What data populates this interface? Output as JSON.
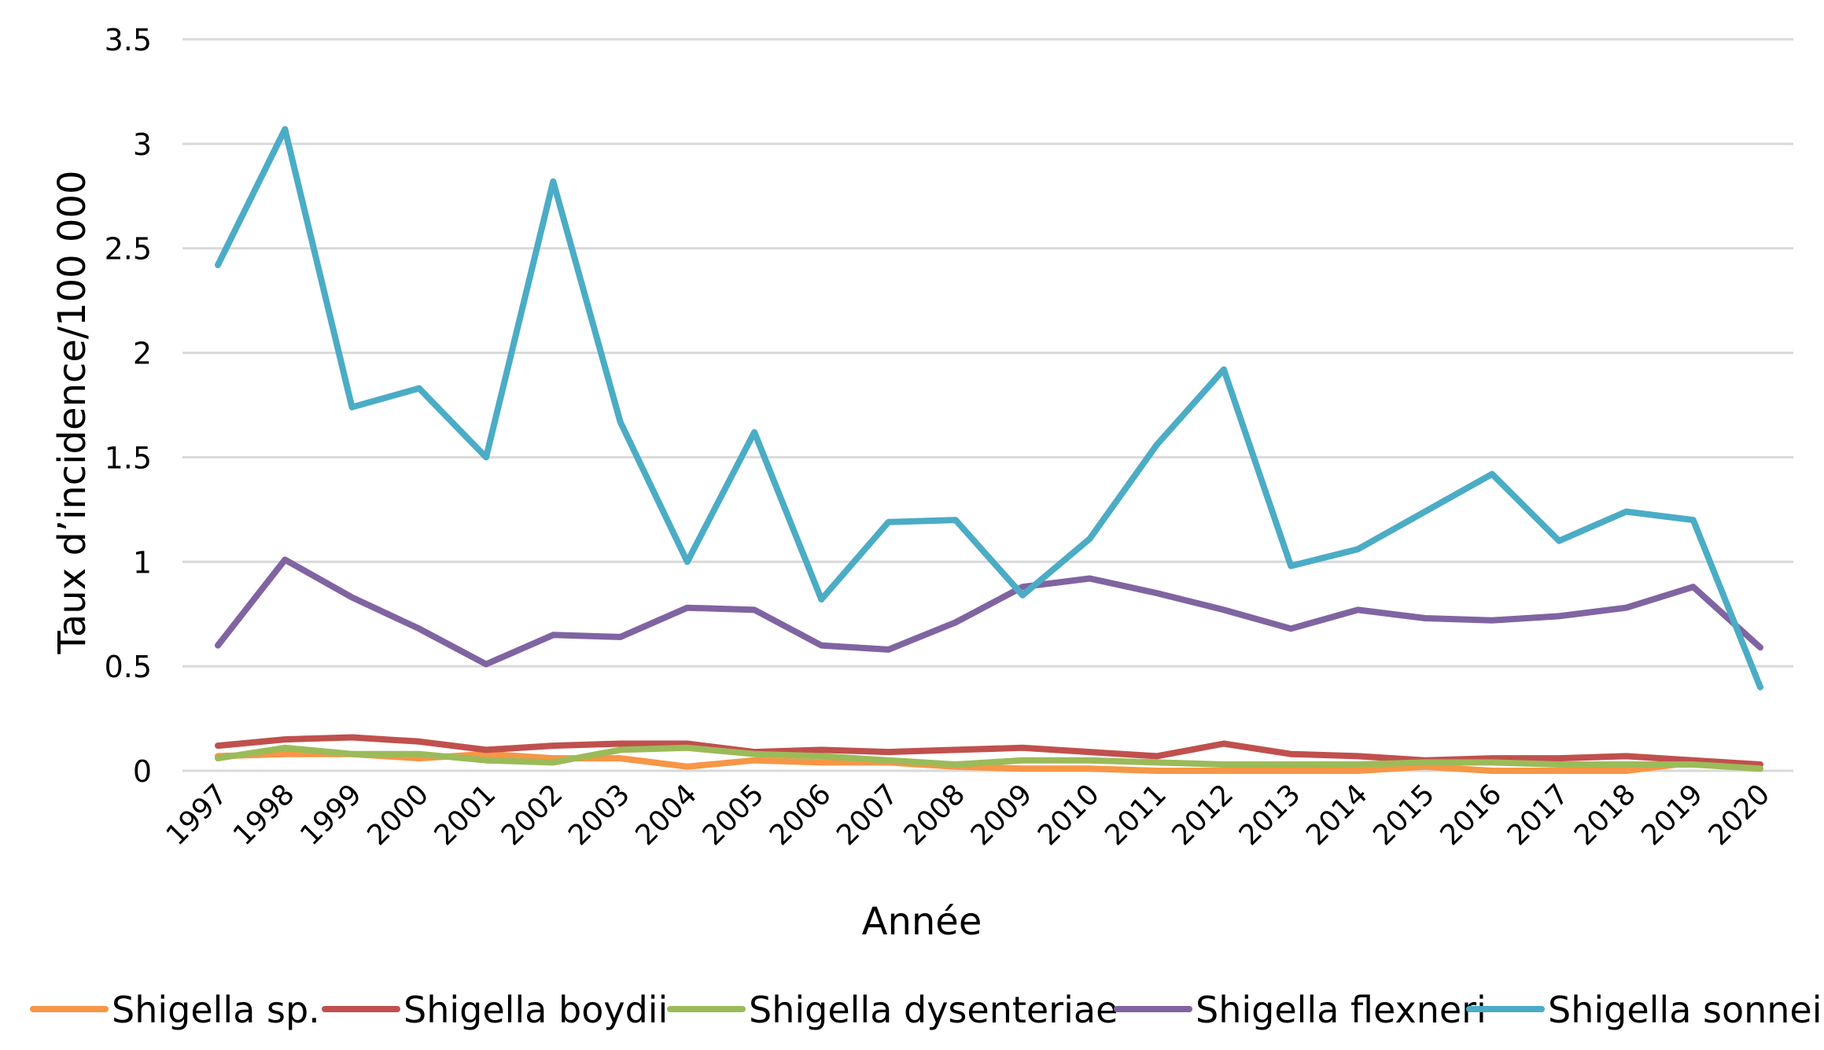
{
  "chart_data": {
    "type": "line",
    "title": "",
    "xlabel": "Année",
    "ylabel": "Taux d’incidence/100 000",
    "ylim": [
      0,
      3.5
    ],
    "yticks": [
      "0",
      "0.5",
      "1",
      "1.5",
      "2",
      "2.5",
      "3",
      "3.5"
    ],
    "grid": true,
    "legend_position": "bottom",
    "x": [
      "1997",
      "1998",
      "1999",
      "2000",
      "2001",
      "2002",
      "2003",
      "2004",
      "2005",
      "2006",
      "2007",
      "2008",
      "2009",
      "2010",
      "2011",
      "2012",
      "2013",
      "2014",
      "2015",
      "2016",
      "2017",
      "2018",
      "2019",
      "2020"
    ],
    "series": [
      {
        "name": "Shigella sp.",
        "color": "#F79646",
        "values": [
          0.07,
          0.08,
          0.08,
          0.06,
          0.08,
          0.06,
          0.06,
          0.02,
          0.05,
          0.04,
          0.04,
          0.02,
          0.01,
          0.01,
          0.0,
          0.0,
          0.0,
          0.0,
          0.02,
          0.0,
          0.0,
          0.0,
          0.04,
          0.01
        ]
      },
      {
        "name": "Shigella boydii",
        "color": "#C0504D",
        "values": [
          0.12,
          0.15,
          0.16,
          0.14,
          0.1,
          0.12,
          0.13,
          0.13,
          0.09,
          0.1,
          0.09,
          0.1,
          0.11,
          0.09,
          0.07,
          0.13,
          0.08,
          0.07,
          0.05,
          0.06,
          0.06,
          0.07,
          0.05,
          0.03
        ]
      },
      {
        "name": "Shigella dysenteriae",
        "color": "#9BBB59",
        "values": [
          0.06,
          0.11,
          0.08,
          0.08,
          0.05,
          0.04,
          0.1,
          0.11,
          0.08,
          0.07,
          0.05,
          0.03,
          0.05,
          0.05,
          0.04,
          0.03,
          0.03,
          0.03,
          0.04,
          0.04,
          0.03,
          0.03,
          0.03,
          0.01
        ]
      },
      {
        "name": "Shigella flexneri",
        "color": "#8064A2",
        "values": [
          0.6,
          1.01,
          0.83,
          0.68,
          0.51,
          0.65,
          0.64,
          0.78,
          0.77,
          0.6,
          0.58,
          0.71,
          0.88,
          0.92,
          0.85,
          0.77,
          0.68,
          0.77,
          0.73,
          0.72,
          0.74,
          0.78,
          0.88,
          0.59
        ]
      },
      {
        "name": "Shigella sonnei",
        "color": "#4BACC6",
        "values": [
          2.42,
          3.07,
          1.74,
          1.83,
          1.5,
          2.82,
          1.67,
          1.0,
          1.62,
          0.82,
          1.19,
          1.2,
          0.84,
          1.11,
          1.56,
          1.92,
          0.98,
          1.06,
          1.24,
          1.42,
          1.1,
          1.24,
          1.2,
          0.4
        ]
      }
    ]
  }
}
